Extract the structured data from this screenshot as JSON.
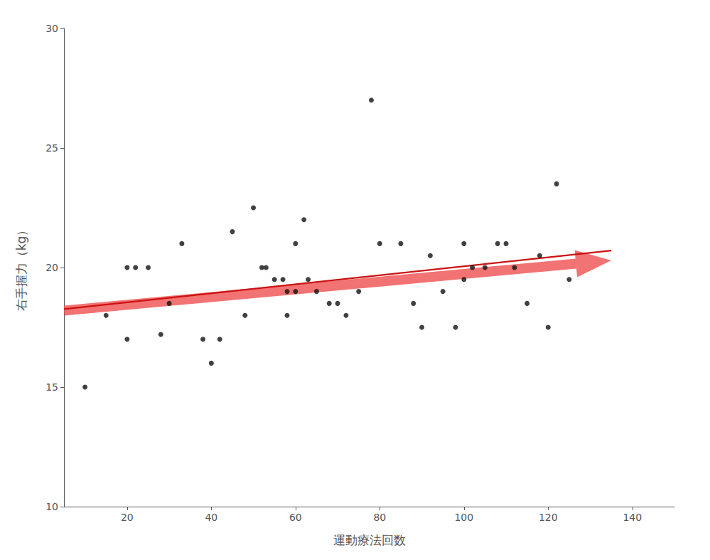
{
  "chart_data": {
    "type": "scatter",
    "xlabel": "運動療法回数",
    "ylabel": "右手握力（kg）",
    "xlim": [
      5,
      150
    ],
    "xticks": [
      20,
      40,
      60,
      80,
      100,
      120,
      140
    ],
    "ylim": [
      10,
      30
    ],
    "yticks": [
      10,
      15,
      20,
      25,
      30
    ],
    "grid": false,
    "series": [
      {
        "type": "arrow",
        "color": "#f06060",
        "x": [
          5,
          135
        ],
        "values": [
          18.2,
          20.3
        ]
      },
      {
        "type": "line",
        "color": "#cc1111",
        "x": [
          5,
          135
        ],
        "values": [
          18.2636,
          20.7119
        ]
      },
      {
        "type": "scatter",
        "color": "#111111",
        "x": [
          10,
          15,
          20,
          20,
          22,
          25,
          28,
          30,
          33,
          38,
          40,
          42,
          45,
          48,
          50,
          52,
          53,
          55,
          57,
          58,
          58,
          60,
          60,
          62,
          63,
          65,
          68,
          70,
          72,
          75,
          78,
          80,
          85,
          88,
          90,
          92,
          95,
          98,
          100,
          100,
          102,
          105,
          108,
          110,
          112,
          115,
          118,
          120,
          122,
          125
        ],
        "values": [
          15,
          18,
          20,
          17,
          20,
          20,
          17.2,
          18.5,
          21,
          17,
          16,
          17,
          21.5,
          18,
          22.5,
          20,
          20,
          19.5,
          19.5,
          19,
          18,
          21,
          19,
          22,
          19.5,
          19,
          18.5,
          18.5,
          18,
          19,
          27,
          21,
          21,
          18.5,
          17.5,
          20.5,
          19,
          17.5,
          19.5,
          21,
          20,
          20,
          21,
          21,
          20,
          18.5,
          20.5,
          17.5,
          23.5,
          19.5
        ]
      }
    ]
  }
}
